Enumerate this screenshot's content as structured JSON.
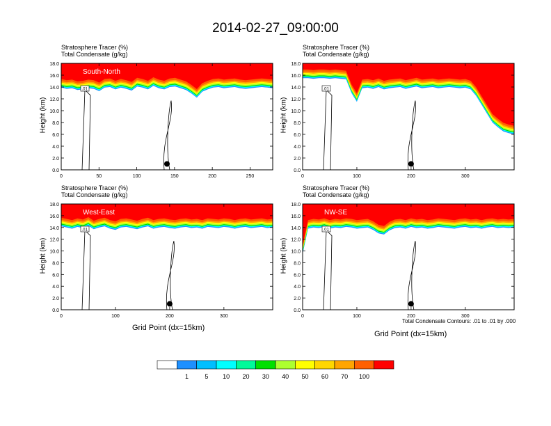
{
  "title": "2014-02-27_09:00:00",
  "chart_data": [
    {
      "type": "heatmap",
      "panel_label": "South-North",
      "header_line1": "Stratosphere Tracer   (%)",
      "header_line2": "Total Condensate   (g/kg)",
      "ylabel": "Height (km)",
      "xlabel": "",
      "xlim": [
        0,
        280
      ],
      "ylim": [
        0,
        18
      ],
      "xticks": [
        0,
        50,
        100,
        150,
        200,
        250
      ],
      "yticks": [
        "0.0",
        "2.0",
        "4.0",
        "6.0",
        "8.0",
        "10.0",
        "12.0",
        "14.0",
        "16.0",
        "18.0"
      ],
      "tracer_base_km": [
        14.9,
        14.7,
        14.8,
        14.5,
        14.6,
        14.8,
        14.7,
        14.3,
        14.9,
        15.0,
        14.6,
        14.9,
        14.7,
        14.4,
        15.1,
        14.9,
        14.6,
        15.2,
        14.8,
        14.6,
        15.0,
        15.1,
        14.8,
        14.5,
        13.9,
        13.2,
        14.2,
        14.6,
        14.9,
        15.0,
        14.8,
        14.9,
        15.0,
        14.8,
        14.7,
        14.8,
        14.9,
        15.0,
        14.9,
        14.8
      ],
      "marker_x": 140,
      "marker_y_km": 1.0,
      "contour_label": ".01"
    },
    {
      "type": "heatmap",
      "panel_label": "",
      "header_line1": "Stratosphere Tracer   (%)",
      "header_line2": "Total Condensate   (g/kg)",
      "ylabel": "Height (km)",
      "xlabel": "",
      "xlim": [
        0,
        390
      ],
      "ylim": [
        0,
        18
      ],
      "xticks": [
        0,
        100,
        200,
        300
      ],
      "yticks": [
        "0.0",
        "2.0",
        "4.0",
        "6.0",
        "8.0",
        "10.0",
        "12.0",
        "14.0",
        "16.0",
        "18.0"
      ],
      "tracer_base_km": [
        16.5,
        16.5,
        16.4,
        16.5,
        16.5,
        16.4,
        16.5,
        16.4,
        16.3,
        14.0,
        12.5,
        14.8,
        14.9,
        14.7,
        15.0,
        14.6,
        14.8,
        14.9,
        15.0,
        14.7,
        14.9,
        15.1,
        14.8,
        14.9,
        15.0,
        14.8,
        14.9,
        15.0,
        14.9,
        14.8,
        14.9,
        14.6,
        13.5,
        12.0,
        10.5,
        9.0,
        8.2,
        7.5,
        7.2,
        7.0
      ],
      "marker_x": 200,
      "marker_y_km": 1.0,
      "contour_label": ".01"
    },
    {
      "type": "heatmap",
      "panel_label": "West-East",
      "header_line1": "Stratosphere Tracer   (%)",
      "header_line2": "Total Condensate   (g/kg)",
      "ylabel": "Height (km)",
      "xlabel": "Grid Point (dx=15km)",
      "xlim": [
        0,
        390
      ],
      "ylim": [
        0,
        18
      ],
      "xticks": [
        0,
        100,
        200,
        300
      ],
      "yticks": [
        "0.0",
        "2.0",
        "4.0",
        "6.0",
        "8.0",
        "10.0",
        "12.0",
        "14.0",
        "16.0",
        "18.0"
      ],
      "tracer_base_km": [
        15.2,
        15.0,
        14.8,
        15.1,
        14.9,
        15.3,
        14.7,
        15.0,
        15.2,
        14.8,
        14.6,
        15.0,
        15.1,
        14.9,
        14.7,
        15.0,
        15.2,
        14.8,
        15.0,
        15.1,
        14.9,
        14.8,
        15.0,
        15.1,
        14.9,
        15.0,
        14.8,
        15.1,
        15.0,
        14.9,
        15.1,
        15.0,
        14.8,
        15.0,
        15.1,
        14.9,
        15.0,
        15.1,
        14.9,
        15.0
      ],
      "marker_x": 200,
      "marker_y_km": 1.0,
      "contour_label": ".01"
    },
    {
      "type": "heatmap",
      "panel_label": "NW-SE",
      "header_line1": "Stratosphere Tracer   (%)",
      "header_line2": "Total Condensate   (g/kg)",
      "ylabel": "Height (km)",
      "xlabel": "Grid Point (dx=15km)",
      "note": "Total Condensate Contours: .01 to .01 by .000",
      "xlim": [
        0,
        390
      ],
      "ylim": [
        0,
        18
      ],
      "xticks": [
        0,
        100,
        200,
        300
      ],
      "yticks": [
        "0.0",
        "2.0",
        "4.0",
        "6.0",
        "8.0",
        "10.0",
        "12.0",
        "14.0",
        "16.0",
        "18.0"
      ],
      "tracer_base_km": [
        10.5,
        14.8,
        15.0,
        14.9,
        15.1,
        14.8,
        15.0,
        14.9,
        15.1,
        15.0,
        14.8,
        14.9,
        15.0,
        14.6,
        14.0,
        13.8,
        14.5,
        14.9,
        15.0,
        14.8,
        15.1,
        14.9,
        15.0,
        14.8,
        14.9,
        15.1,
        15.0,
        14.9,
        14.8,
        15.0,
        15.1,
        14.9,
        15.0,
        14.8,
        15.0,
        15.1,
        14.9,
        15.0,
        14.9,
        15.0
      ],
      "marker_x": 200,
      "marker_y_km": 1.0,
      "contour_label": ".01"
    }
  ],
  "colorbar": {
    "labels": [
      "1",
      "5",
      "10",
      "20",
      "30",
      "40",
      "50",
      "60",
      "70",
      "100"
    ],
    "colors": [
      "#ffffff",
      "#1e90ff",
      "#00bfff",
      "#00ffff",
      "#00fa9a",
      "#00e000",
      "#adff2f",
      "#ffff00",
      "#ffd700",
      "#ffa500",
      "#ff6000",
      "#ff0000"
    ]
  }
}
